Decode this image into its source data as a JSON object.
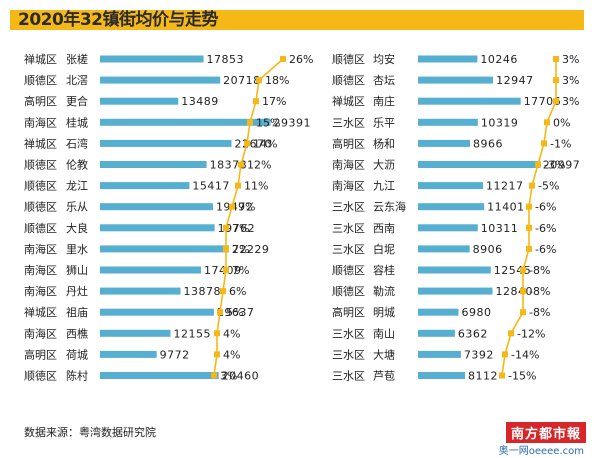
{
  "header": {
    "title": "2020年32镇街均价与走势"
  },
  "source": "数据来源：粤湾数据研究院",
  "watermark": {
    "main": "南方都市報",
    "sub": "奥一网oeeee.com"
  },
  "chart_data": [
    {
      "type": "bar",
      "panel": "left",
      "value_range": [
        0,
        30000
      ],
      "trend_unit": "%",
      "colors": {
        "bar": "#56aed1",
        "trend": "#f6b817"
      },
      "rows": [
        {
          "district": "禅城区",
          "town": "张槎",
          "price": 17853,
          "trend": 26
        },
        {
          "district": "顺德区",
          "town": "北滘",
          "price": 20718,
          "trend": 18
        },
        {
          "district": "高明区",
          "town": "更合",
          "price": 13489,
          "trend": 17
        },
        {
          "district": "南海区",
          "town": "桂城",
          "price": 29391,
          "trend": 15
        },
        {
          "district": "禅城区",
          "town": "石湾",
          "price": 22670,
          "trend": 14
        },
        {
          "district": "顺德区",
          "town": "伦教",
          "price": 18378,
          "trend": 12
        },
        {
          "district": "顺德区",
          "town": "龙江",
          "price": 15417,
          "trend": 11
        },
        {
          "district": "顺德区",
          "town": "乐从",
          "price": 19472,
          "trend": 9
        },
        {
          "district": "顺德区",
          "town": "大良",
          "price": 19762,
          "trend": 7
        },
        {
          "district": "南海区",
          "town": "里水",
          "price": 22229,
          "trend": 7
        },
        {
          "district": "南海区",
          "town": "狮山",
          "price": 17409,
          "trend": 7
        },
        {
          "district": "南海区",
          "town": "丹灶",
          "price": 13878,
          "trend": 6
        },
        {
          "district": "禅城区",
          "town": "祖庙",
          "price": 19637,
          "trend": 5
        },
        {
          "district": "南海区",
          "town": "西樵",
          "price": 12155,
          "trend": 4
        },
        {
          "district": "高明区",
          "town": "荷城",
          "price": 9772,
          "trend": 4
        },
        {
          "district": "顺德区",
          "town": "陈村",
          "price": 20460,
          "trend": 3
        }
      ]
    },
    {
      "type": "bar",
      "panel": "right",
      "value_range": [
        0,
        30000
      ],
      "trend_unit": "%",
      "colors": {
        "bar": "#56aed1",
        "trend": "#f6b817"
      },
      "rows": [
        {
          "district": "顺德区",
          "town": "均安",
          "price": 10246,
          "trend": 3
        },
        {
          "district": "顺德区",
          "town": "杏坛",
          "price": 12947,
          "trend": 3
        },
        {
          "district": "禅城区",
          "town": "南庄",
          "price": 17706,
          "trend": 3
        },
        {
          "district": "三水区",
          "town": "乐平",
          "price": 10319,
          "trend": 0
        },
        {
          "district": "高明区",
          "town": "杨和",
          "price": 8966,
          "trend": -1
        },
        {
          "district": "南海区",
          "town": "大沥",
          "price": 20997,
          "trend": -3
        },
        {
          "district": "南海区",
          "town": "九江",
          "price": 11217,
          "trend": -5
        },
        {
          "district": "三水区",
          "town": "云东海",
          "price": 11401,
          "trend": -6
        },
        {
          "district": "三水区",
          "town": "西南",
          "price": 10311,
          "trend": -6
        },
        {
          "district": "三水区",
          "town": "白坭",
          "price": 8906,
          "trend": -6
        },
        {
          "district": "顺德区",
          "town": "容桂",
          "price": 12545,
          "trend": -8
        },
        {
          "district": "顺德区",
          "town": "勒流",
          "price": 12840,
          "trend": -8
        },
        {
          "district": "高明区",
          "town": "明城",
          "price": 6980,
          "trend": -8
        },
        {
          "district": "三水区",
          "town": "南山",
          "price": 6362,
          "trend": -12
        },
        {
          "district": "三水区",
          "town": "大塘",
          "price": 7392,
          "trend": -14
        },
        {
          "district": "三水区",
          "town": "芦苞",
          "price": 8112,
          "trend": -15
        }
      ]
    }
  ]
}
